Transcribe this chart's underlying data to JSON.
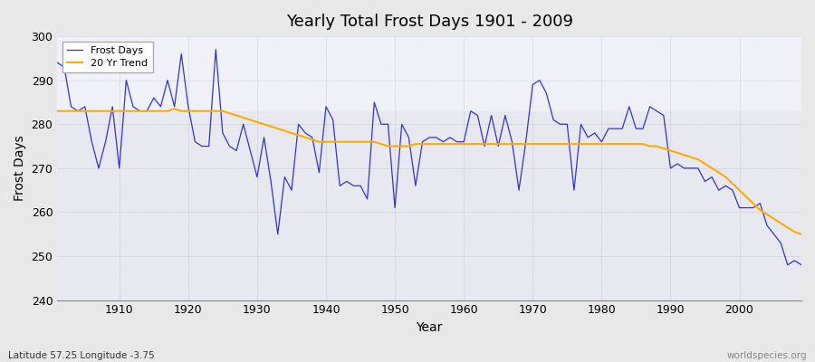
{
  "title": "Yearly Total Frost Days 1901 - 2009",
  "xlabel": "Year",
  "ylabel": "Frost Days",
  "footnote_left": "Latitude 57.25 Longitude -3.75",
  "footnote_right": "worldspecies.org",
  "ylim": [
    240,
    300
  ],
  "yticks": [
    240,
    250,
    260,
    270,
    280,
    290,
    300
  ],
  "xticks": [
    1910,
    1920,
    1930,
    1940,
    1950,
    1960,
    1970,
    1980,
    1990,
    2000
  ],
  "legend_labels": [
    "Frost Days",
    "20 Yr Trend"
  ],
  "line_color": "#3333cc",
  "trend_color": "#ffaa00",
  "fig_bg_color": "#e8e8e8",
  "plot_bg_color": "#e8e8f0",
  "upper_bg_color": "#f0f0f8",
  "frost_days": [
    294,
    293,
    284,
    283,
    284,
    276,
    270,
    276,
    284,
    270,
    290,
    284,
    283,
    283,
    286,
    284,
    290,
    284,
    296,
    284,
    276,
    275,
    275,
    297,
    278,
    275,
    274,
    280,
    274,
    268,
    277,
    267,
    255,
    268,
    265,
    280,
    278,
    277,
    269,
    284,
    281,
    266,
    267,
    266,
    266,
    263,
    285,
    280,
    280,
    261,
    280,
    277,
    266,
    276,
    277,
    277,
    276,
    277,
    276,
    276,
    283,
    282,
    275,
    282,
    275,
    282,
    276,
    265,
    276,
    289,
    290,
    287,
    281,
    280,
    280,
    265,
    280,
    277,
    278,
    276,
    279,
    279,
    279,
    284,
    279,
    279,
    284,
    283,
    282,
    270,
    271,
    270,
    270,
    270,
    267,
    268,
    265,
    266,
    265,
    261,
    261,
    261,
    262,
    257,
    255,
    253,
    248,
    249,
    248
  ],
  "trend": [
    283.0,
    283.0,
    283.0,
    283.0,
    283.0,
    283.0,
    283.0,
    283.0,
    283.0,
    283.0,
    283.0,
    283.0,
    283.0,
    283.0,
    283.0,
    283.0,
    283.0,
    283.5,
    283.0,
    283.0,
    283.0,
    283.0,
    283.0,
    283.0,
    283.0,
    282.5,
    282.0,
    281.5,
    281.0,
    280.5,
    280.0,
    279.5,
    279.0,
    278.5,
    278.0,
    277.5,
    277.0,
    276.5,
    276.0,
    276.0,
    276.0,
    276.0,
    276.0,
    276.0,
    276.0,
    276.0,
    276.0,
    275.5,
    275.0,
    275.0,
    275.0,
    275.0,
    275.5,
    275.5,
    275.5,
    275.5,
    275.5,
    275.5,
    275.5,
    275.5,
    275.5,
    275.5,
    275.5,
    275.5,
    275.5,
    275.5,
    275.5,
    275.5,
    275.5,
    275.5,
    275.5,
    275.5,
    275.5,
    275.5,
    275.5,
    275.5,
    275.5,
    275.5,
    275.5,
    275.5,
    275.5,
    275.5,
    275.5,
    275.5,
    275.5,
    275.5,
    275.0,
    275.0,
    274.5,
    274.0,
    273.5,
    273.0,
    272.5,
    272.0,
    271.0,
    270.0,
    269.0,
    268.0,
    266.5,
    265.0,
    263.5,
    262.0,
    260.5,
    259.5,
    258.5,
    257.5,
    256.5,
    255.5,
    255.0
  ]
}
